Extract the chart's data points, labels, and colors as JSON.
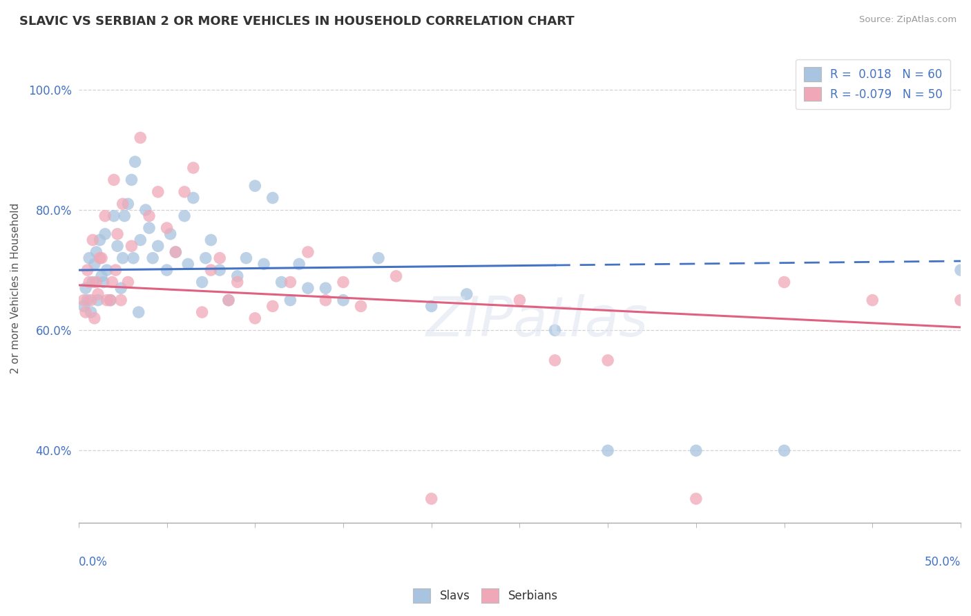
{
  "title": "SLAVIC VS SERBIAN 2 OR MORE VEHICLES IN HOUSEHOLD CORRELATION CHART",
  "source": "Source: ZipAtlas.com",
  "ylabel": "2 or more Vehicles in Household",
  "xmin": 0.0,
  "xmax": 50.0,
  "ymin": 28.0,
  "ymax": 106.0,
  "slavs_color": "#a8c4e0",
  "serbians_color": "#f0a8b8",
  "slavs_line_color": "#4472c4",
  "serbians_line_color": "#e06080",
  "R_slavs": 0.018,
  "N_slavs": 60,
  "R_serbians": -0.079,
  "N_serbians": 50,
  "legend_text_color": "#4472c4",
  "slavs_line_y0": 70.0,
  "slavs_line_y50": 71.5,
  "slavs_solid_end_x": 27.0,
  "serbians_line_y0": 67.5,
  "serbians_line_y50": 60.5,
  "slavs_x": [
    1.5,
    2.0,
    2.5,
    2.8,
    3.0,
    3.2,
    3.5,
    3.8,
    4.0,
    4.2,
    4.5,
    5.0,
    5.2,
    5.5,
    6.0,
    6.2,
    6.5,
    7.0,
    7.2,
    7.5,
    8.0,
    8.5,
    9.0,
    9.5,
    10.0,
    10.5,
    11.0,
    11.5,
    12.0,
    12.5,
    13.0,
    1.0,
    1.2,
    1.4,
    1.6,
    1.8,
    2.2,
    2.4,
    2.6,
    3.1,
    3.4,
    0.5,
    0.7,
    0.8,
    0.9,
    1.1,
    1.3,
    0.3,
    0.4,
    0.6,
    14.0,
    15.0,
    17.0,
    20.0,
    22.0,
    27.0,
    30.0,
    35.0,
    40.0,
    50.0
  ],
  "slavs_y": [
    76.0,
    79.0,
    72.0,
    81.0,
    85.0,
    88.0,
    75.0,
    80.0,
    77.0,
    72.0,
    74.0,
    70.0,
    76.0,
    73.0,
    79.0,
    71.0,
    82.0,
    68.0,
    72.0,
    75.0,
    70.0,
    65.0,
    69.0,
    72.0,
    84.0,
    71.0,
    82.0,
    68.0,
    65.0,
    71.0,
    67.0,
    73.0,
    75.0,
    68.0,
    70.0,
    65.0,
    74.0,
    67.0,
    79.0,
    72.0,
    63.0,
    65.0,
    63.0,
    68.0,
    71.0,
    65.0,
    69.0,
    64.0,
    67.0,
    72.0,
    67.0,
    65.0,
    72.0,
    64.0,
    66.0,
    60.0,
    40.0,
    40.0,
    40.0,
    70.0
  ],
  "serbians_x": [
    0.3,
    0.5,
    0.8,
    1.0,
    1.2,
    1.5,
    1.8,
    2.0,
    2.2,
    2.5,
    2.8,
    3.0,
    3.5,
    4.0,
    4.5,
    5.0,
    5.5,
    6.0,
    6.5,
    7.0,
    7.5,
    8.0,
    8.5,
    9.0,
    10.0,
    11.0,
    12.0,
    13.0,
    14.0,
    15.0,
    0.4,
    0.6,
    0.7,
    0.9,
    1.1,
    1.3,
    1.6,
    1.9,
    2.1,
    2.4,
    16.0,
    18.0,
    20.0,
    25.0,
    27.0,
    30.0,
    35.0,
    40.0,
    45.0,
    50.0
  ],
  "serbians_y": [
    65.0,
    70.0,
    75.0,
    68.0,
    72.0,
    79.0,
    65.0,
    85.0,
    76.0,
    81.0,
    68.0,
    74.0,
    92.0,
    79.0,
    83.0,
    77.0,
    73.0,
    83.0,
    87.0,
    63.0,
    70.0,
    72.0,
    65.0,
    68.0,
    62.0,
    64.0,
    68.0,
    73.0,
    65.0,
    68.0,
    63.0,
    68.0,
    65.0,
    62.0,
    66.0,
    72.0,
    65.0,
    68.0,
    70.0,
    65.0,
    64.0,
    69.0,
    32.0,
    65.0,
    55.0,
    55.0,
    32.0,
    68.0,
    65.0,
    65.0
  ],
  "ytick_vals": [
    40,
    60,
    80,
    100
  ],
  "ytick_labels": [
    "40.0%",
    "60.0%",
    "80.0%",
    "100.0%"
  ]
}
